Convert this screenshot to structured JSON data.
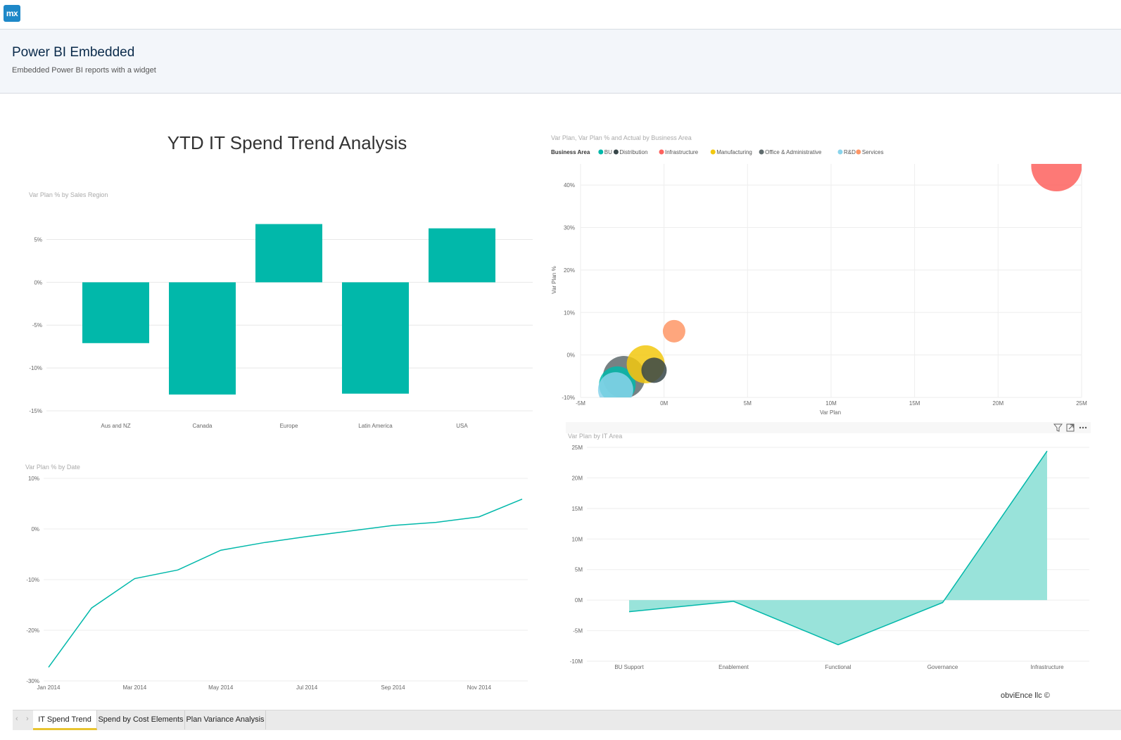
{
  "app": {
    "logo_text": "mx"
  },
  "header": {
    "title": "Power BI Embedded",
    "subtitle": "Embedded Power BI reports with a widget"
  },
  "report": {
    "title": "YTD IT Spend Trend Analysis",
    "credit": "obviEnce llc ©"
  },
  "tabs": {
    "prev": "‹",
    "next": "›",
    "items": [
      {
        "label": "IT Spend Trend",
        "active": true
      },
      {
        "label": "Spend by Cost Elements",
        "active": false
      },
      {
        "label": "Plan Variance Analysis",
        "active": false
      }
    ]
  },
  "colors": {
    "teal": "#01b8aa",
    "teal_fill": "#93e1d8",
    "accent_tab": "#e8c430",
    "brand": "#1e88c8"
  },
  "chart_data": [
    {
      "type": "bar",
      "title": "Var Plan % by Sales Region",
      "categories": [
        "Aus and NZ",
        "Canada",
        "Europe",
        "Latin America",
        "USA"
      ],
      "values": [
        -7.1,
        -13.1,
        6.8,
        -13.0,
        6.3
      ],
      "ylim": [
        -15,
        7.5
      ],
      "yticks": [
        5,
        0,
        -5,
        -10,
        -15
      ],
      "ytick_labels": [
        "5%",
        "0%",
        "-5%",
        "-10%",
        "-15%"
      ],
      "color": "#01b8aa",
      "grid": true
    },
    {
      "type": "scatter",
      "title": "Var Plan, Var Plan % and Actual by Business Area",
      "legend_title": "Business Area",
      "legend_position": "top-left",
      "xlabel": "Var Plan",
      "ylabel": "Var Plan %",
      "xlim": [
        -5,
        25
      ],
      "ylim": [
        -10,
        45
      ],
      "xticks": [
        -5,
        0,
        5,
        10,
        15,
        20,
        25
      ],
      "xtick_labels": [
        "-5M",
        "0M",
        "5M",
        "10M",
        "15M",
        "20M",
        "25M"
      ],
      "yticks": [
        -10,
        0,
        10,
        20,
        30,
        40
      ],
      "ytick_labels": [
        "-10%",
        "0%",
        "10%",
        "20%",
        "30%",
        "40%"
      ],
      "series": [
        {
          "name": "BU",
          "color": "#01b8aa",
          "points": [
            {
              "x": -2.8,
              "y": -7.0,
              "size": 26
            }
          ]
        },
        {
          "name": "Distribution",
          "color": "#374649",
          "points": [
            {
              "x": -0.6,
              "y": -3.6,
              "size": 18
            }
          ]
        },
        {
          "name": "Infrastructure",
          "color": "#fd625e",
          "points": [
            {
              "x": 23.5,
              "y": 44.5,
              "size": 36
            }
          ]
        },
        {
          "name": "Manufacturing",
          "color": "#f2c80f",
          "points": [
            {
              "x": -1.1,
              "y": -2.2,
              "size": 27
            }
          ]
        },
        {
          "name": "Office & Administrative",
          "color": "#5f6b6d",
          "points": [
            {
              "x": -2.4,
              "y": -5.2,
              "size": 30
            }
          ]
        },
        {
          "name": "R&D",
          "color": "#8ad4eb",
          "points": [
            {
              "x": -2.9,
              "y": -8.2,
              "size": 25
            }
          ]
        },
        {
          "name": "Services",
          "color": "#fe9666",
          "points": [
            {
              "x": 0.6,
              "y": 5.6,
              "size": 16
            }
          ]
        }
      ]
    },
    {
      "type": "line",
      "title": "Var Plan % by Date",
      "x": [
        "Jan 2014",
        "Feb 2014",
        "Mar 2014",
        "Apr 2014",
        "May 2014",
        "Jun 2014",
        "Jul 2014",
        "Aug 2014",
        "Sep 2014",
        "Oct 2014",
        "Nov 2014",
        "Dec 2014"
      ],
      "values": [
        -27.3,
        -15.6,
        -9.8,
        -8.1,
        -4.2,
        -2.7,
        -1.5,
        -0.4,
        0.7,
        1.3,
        2.4,
        5.9
      ],
      "xtick_labels": [
        "Jan 2014",
        "Mar 2014",
        "May 2014",
        "Jul 2014",
        "Sep 2014",
        "Nov 2014"
      ],
      "ylim": [
        -30,
        10
      ],
      "yticks": [
        10,
        0,
        -10,
        -20,
        -30
      ],
      "ytick_labels": [
        "10%",
        "0%",
        "-10%",
        "-20%",
        "-30%"
      ],
      "color": "#01b8aa",
      "grid": true
    },
    {
      "type": "area",
      "title": "Var Plan by IT Area",
      "categories": [
        "BU Support",
        "Enablement",
        "Functional",
        "Governance",
        "Infrastructure"
      ],
      "values": [
        -1.9,
        -0.2,
        -7.3,
        -0.4,
        24.4
      ],
      "ylim": [
        -10,
        25
      ],
      "yticks": [
        25,
        20,
        15,
        10,
        5,
        0,
        -5,
        -10
      ],
      "ytick_labels": [
        "25M",
        "20M",
        "15M",
        "10M",
        "5M",
        "0M",
        "-5M",
        "-10M"
      ],
      "color": "#01b8aa",
      "fill": "#93e1d8",
      "grid": true,
      "header_icons": [
        "filter-icon",
        "focus-mode-icon",
        "more-options-icon"
      ]
    }
  ]
}
